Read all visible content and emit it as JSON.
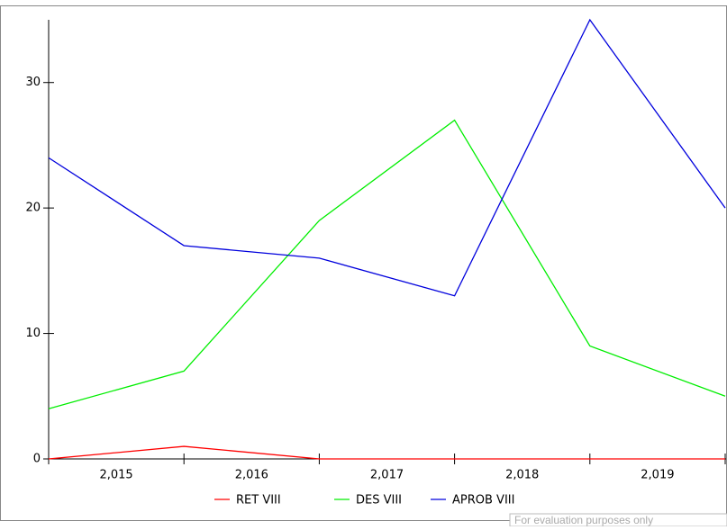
{
  "chart_data": {
    "type": "line",
    "x": [
      2014.5,
      2015.5,
      2016.5,
      2017.5,
      2018.5,
      2019.5
    ],
    "xlim": [
      2014.5,
      2019.5
    ],
    "xticks": [
      {
        "value": 2015,
        "label": "2,015"
      },
      {
        "value": 2016,
        "label": "2,016"
      },
      {
        "value": 2017,
        "label": "2,017"
      },
      {
        "value": 2018,
        "label": "2,018"
      },
      {
        "value": 2019,
        "label": "2,019"
      }
    ],
    "ylim": [
      0,
      35
    ],
    "yticks": [
      0,
      10,
      20,
      30
    ],
    "series": [
      {
        "name": "RET VIII",
        "color": "#ff0000",
        "values": [
          0,
          1,
          0,
          0,
          0,
          0
        ]
      },
      {
        "name": "DES VIII",
        "color": "#00ee00",
        "values": [
          4,
          7,
          19,
          27,
          9,
          5
        ]
      },
      {
        "name": "APROB VIII",
        "color": "#0000dd",
        "values": [
          24,
          17,
          16,
          13,
          35,
          20
        ]
      }
    ],
    "legend": "bottom",
    "watermark": "For evaluation purposes only"
  }
}
